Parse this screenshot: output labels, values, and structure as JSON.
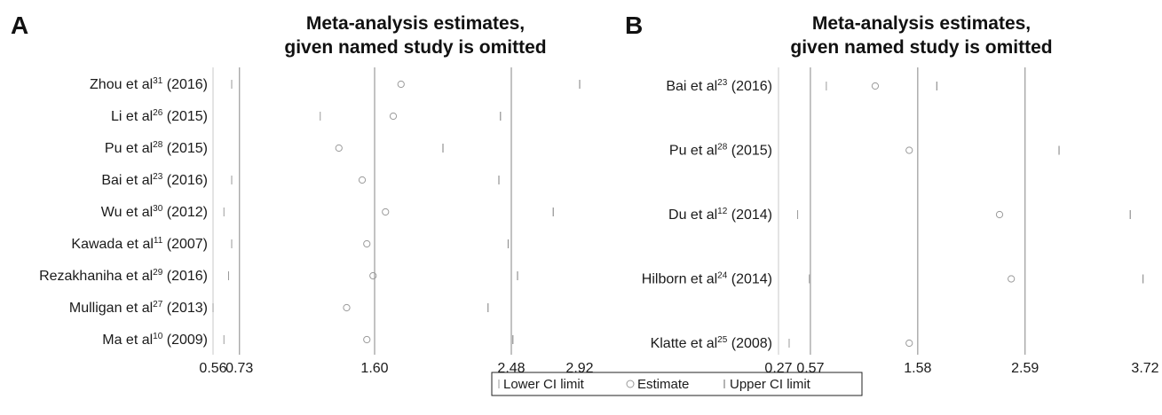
{
  "chart_data": [
    {
      "panel": "A",
      "type": "scatter",
      "title": "Meta-analysis estimates, given named study is omitted",
      "title_lines": [
        "Meta-analysis estimates,",
        "given named study is omitted"
      ],
      "xlim": [
        0.56,
        2.92
      ],
      "xticks": [
        0.56,
        0.73,
        1.6,
        2.48,
        2.92
      ],
      "xtick_labels": [
        "0.56",
        "0.73",
        "1.60",
        "2.48",
        "2.92"
      ],
      "reference_lines": [
        0.73,
        1.6,
        2.48
      ],
      "rows": [
        {
          "name": "Zhou et al",
          "ref": "31",
          "year": "(2016)",
          "lower": 0.68,
          "estimate": 1.77,
          "upper": 2.92
        },
        {
          "name": "Li et al",
          "ref": "26",
          "year": "(2015)",
          "lower": 1.25,
          "estimate": 1.72,
          "upper": 2.41
        },
        {
          "name": "Pu et al",
          "ref": "28",
          "year": "(2015)",
          "lower": null,
          "estimate": 1.37,
          "upper": 2.04
        },
        {
          "name": "Bai et al",
          "ref": "23",
          "year": "(2016)",
          "lower": 0.68,
          "estimate": 1.52,
          "upper": 2.4
        },
        {
          "name": "Wu et al",
          "ref": "30",
          "year": "(2012)",
          "lower": 0.63,
          "estimate": 1.67,
          "upper": 2.75
        },
        {
          "name": "Kawada et al",
          "ref": "11",
          "year": "(2007)",
          "lower": 0.68,
          "estimate": 1.55,
          "upper": 2.46
        },
        {
          "name": "Rezakhaniha et al",
          "ref": "29",
          "year": "(2016)",
          "lower": 0.66,
          "estimate": 1.59,
          "upper": 2.52
        },
        {
          "name": "Mulligan et al",
          "ref": "27",
          "year": "(2013)",
          "lower": 0.56,
          "estimate": 1.42,
          "upper": 2.33
        },
        {
          "name": "Ma et al",
          "ref": "10",
          "year": "(2009)",
          "lower": 0.63,
          "estimate": 1.55,
          "upper": 2.49
        }
      ]
    },
    {
      "panel": "B",
      "type": "scatter",
      "title": "Meta-analysis estimates, given named study is omitted",
      "title_lines": [
        "Meta-analysis estimates,",
        "given named study is omitted"
      ],
      "xlim": [
        0.27,
        3.72
      ],
      "xticks": [
        0.27,
        0.57,
        1.58,
        2.59,
        3.72
      ],
      "xtick_labels": [
        "0.27",
        "0.57",
        "1.58",
        "2.59",
        "3.72"
      ],
      "reference_lines": [
        0.57,
        1.58,
        2.59
      ],
      "rows": [
        {
          "name": "Bai et al",
          "ref": "23",
          "year": "(2016)",
          "lower": 0.72,
          "estimate": 1.18,
          "upper": 1.76
        },
        {
          "name": "Pu et al",
          "ref": "28",
          "year": "(2015)",
          "lower": null,
          "estimate": 1.5,
          "upper": 2.91
        },
        {
          "name": "Du et al",
          "ref": "12",
          "year": "(2014)",
          "lower": 0.45,
          "estimate": 2.35,
          "upper": 3.58
        },
        {
          "name": "Hilborn et al",
          "ref": "24",
          "year": "(2014)",
          "lower": 0.56,
          "estimate": 2.46,
          "upper": 3.7
        },
        {
          "name": "Klatte et al",
          "ref": "25",
          "year": "(2008)",
          "lower": 0.37,
          "estimate": 1.5,
          "upper": null
        }
      ]
    }
  ],
  "legend": {
    "lower_label": "Lower CI limit",
    "estimate_label": "Estimate",
    "upper_label": "Upper CI limit"
  },
  "colors": {
    "reference_line": "#9a9a9a",
    "marker": "#9a9a9a",
    "text": "#1a1a1a"
  }
}
